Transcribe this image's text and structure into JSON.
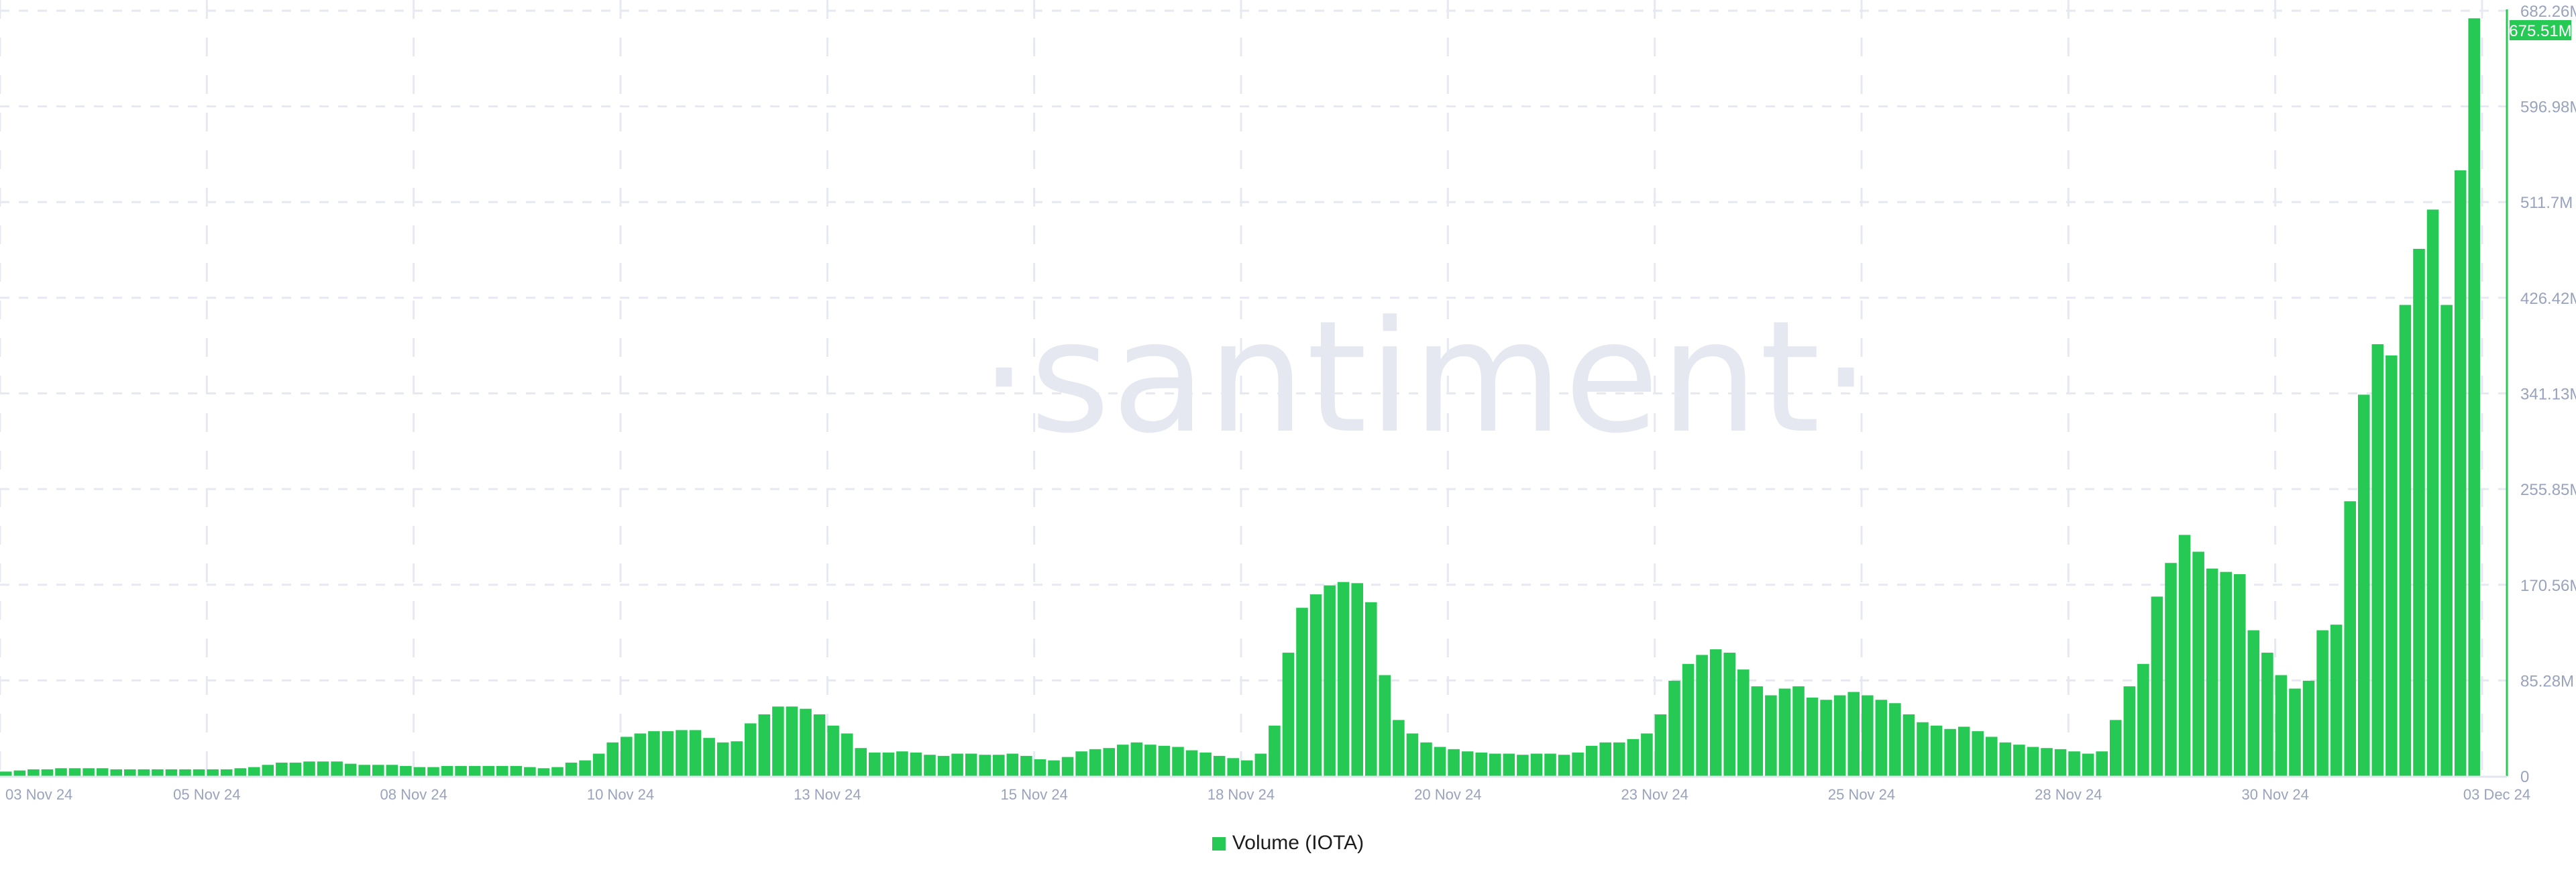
{
  "watermark": "·santiment·",
  "colors": {
    "bar": "#26c953",
    "grid": "#e6e8f2",
    "axis_text": "#9aa3bd",
    "badge_bg": "#26c953",
    "badge_text": "#ffffff"
  },
  "legend": {
    "label": "Volume (IOTA)",
    "icon": "square-swatch"
  },
  "chart_data": {
    "type": "bar",
    "title": "",
    "xlabel": "",
    "ylabel": "",
    "series": [
      {
        "name": "Volume (IOTA)",
        "unit": "M",
        "values": [
          4,
          5,
          6,
          6,
          7,
          7,
          7,
          7,
          6,
          6,
          6,
          6,
          6,
          6,
          6,
          6,
          6,
          7,
          8,
          10,
          12,
          12,
          13,
          13,
          13,
          11,
          10,
          10,
          10,
          9,
          8,
          8,
          9,
          9,
          9,
          9,
          9,
          9,
          8,
          7,
          8,
          12,
          14,
          20,
          30,
          35,
          38,
          40,
          40,
          41,
          41,
          34,
          30,
          31,
          47,
          55,
          62,
          62,
          60,
          55,
          45,
          38,
          25,
          21,
          21,
          22,
          21,
          19,
          18,
          20,
          20,
          19,
          19,
          20,
          18,
          15,
          14,
          17,
          22,
          24,
          25,
          28,
          30,
          28,
          27,
          26,
          23,
          21,
          18,
          16,
          14,
          20,
          45,
          110,
          150,
          162,
          170,
          173,
          172,
          155,
          90,
          50,
          38,
          30,
          26,
          24,
          22,
          21,
          20,
          20,
          19,
          20,
          20,
          19,
          21,
          27,
          30,
          30,
          33,
          38,
          55,
          85,
          100,
          108,
          113,
          110,
          95,
          80,
          72,
          78,
          80,
          70,
          68,
          72,
          75,
          72,
          68,
          65,
          55,
          48,
          45,
          42,
          44,
          40,
          35,
          30,
          28,
          26,
          25,
          24,
          22,
          20,
          22,
          50,
          80,
          100,
          160,
          190,
          215,
          200,
          185,
          182,
          180,
          130,
          110,
          90,
          78,
          85,
          130,
          135,
          245,
          340,
          385,
          375,
          420,
          470,
          505,
          420,
          540,
          675.51
        ]
      }
    ],
    "x_range": [
      "03 Nov 24",
      "03 Dec 24"
    ],
    "x_ticks": [
      "03 Nov 24",
      "05 Nov 24",
      "08 Nov 24",
      "10 Nov 24",
      "13 Nov 24",
      "15 Nov 24",
      "18 Nov 24",
      "20 Nov 24",
      "23 Nov 24",
      "25 Nov 24",
      "28 Nov 24",
      "30 Nov 24",
      "03 Dec 24"
    ],
    "y_ticks": [
      "0",
      "85.28M",
      "170.56M",
      "255.85M",
      "341.13M",
      "426.42M",
      "511.7M",
      "596.98M",
      "682.26M"
    ],
    "y_tick_values": [
      0,
      85.28,
      170.56,
      255.85,
      341.13,
      426.42,
      511.7,
      596.98,
      682.26
    ],
    "ylim": [
      0,
      682.26
    ],
    "last_value_label": "675.51M",
    "grid": true,
    "legend_position": "bottom"
  }
}
